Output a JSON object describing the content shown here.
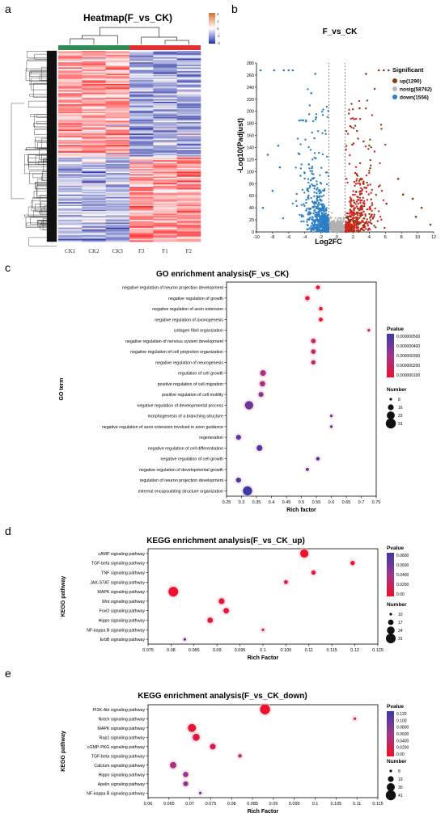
{
  "panels": {
    "a": {
      "letter": "a",
      "title": "Heatmap(F_vs_CK)",
      "samples": [
        "CK1",
        "CK2",
        "CK3",
        "F3",
        "F1",
        "F2"
      ],
      "group_colors": {
        "CK": "#2e8b57",
        "F": "#e03030"
      },
      "legend_ticks": [
        "2",
        "1",
        "0",
        "-1",
        "-2"
      ]
    },
    "b": {
      "letter": "b",
      "title": "F_vs_CK",
      "xlabel": "Log2FC",
      "ylabel": "-Log10(Padjust)",
      "legend_title": "Significant",
      "legend": [
        {
          "label": "up(1290)",
          "color": "#8b3a0e"
        },
        {
          "label": "nosig(58762)",
          "color": "#b8b8b8"
        },
        {
          "label": "down(1556)",
          "color": "#2a7fc4"
        }
      ],
      "xticks": [
        "-10",
        "-8",
        "-6",
        "-4",
        "-2",
        "0",
        "2",
        "4",
        "6",
        "8",
        "10",
        "12"
      ],
      "yticks": [
        "0",
        "20",
        "40",
        "60",
        "80",
        "100",
        "120",
        "140",
        "160",
        "180",
        "200",
        "220",
        "240",
        "260",
        "280"
      ]
    },
    "c": {
      "letter": "c"
    },
    "d": {
      "letter": "d"
    },
    "e": {
      "letter": "e"
    }
  },
  "chart_data": [
    {
      "type": "heatmap",
      "title": "Heatmap(F_vs_CK)",
      "columns": [
        "CK1",
        "CK2",
        "CK3",
        "F3",
        "F1",
        "F2"
      ],
      "color_scale": {
        "min": -2,
        "max": 2,
        "low": "#2233aa",
        "mid": "#ffffff",
        "high": "#e02020"
      },
      "pattern": "upper block high in CK / low in F; lower block low in CK / high in F"
    },
    {
      "type": "scatter",
      "title": "F_vs_CK",
      "xlabel": "Log2FC",
      "ylabel": "-Log10(Padjust)",
      "xlim": [
        -10,
        12
      ],
      "ylim": [
        0,
        280
      ],
      "thresholds": {
        "x": [
          -1,
          1
        ]
      },
      "series": [
        {
          "name": "up(1290)",
          "count": 1290
        },
        {
          "name": "nosig(58762)",
          "count": 58762
        },
        {
          "name": "down(1556)",
          "count": 1556
        }
      ]
    },
    {
      "type": "scatter",
      "title": "GO enrichment analysis(F_vs_CK)",
      "xlabel": "Rich factor",
      "ylabel": "GO term",
      "xlim": [
        0.25,
        0.75
      ],
      "xticks": [
        "0.25",
        "0.3",
        "0.35",
        "0.4",
        "0.45",
        "0.5",
        "0.55",
        "0.6",
        "0.65",
        "0.7",
        "0.75"
      ],
      "color_legend": {
        "title": "Pvalue",
        "ticks": [
          "0.000000500",
          "0.000000400",
          "0.000000300",
          "0.000000200",
          "0.000000100"
        ],
        "min": 1e-07,
        "max": 5e-07
      },
      "size_legend": {
        "title": "Number",
        "ticks": [
          8,
          16,
          23,
          31
        ]
      },
      "terms": [
        {
          "term": "negative regulation of neuron projection development",
          "rich": 0.555,
          "p": 1e-07,
          "n": 11
        },
        {
          "term": "negative regulation of growth",
          "rich": 0.52,
          "p": 1.2e-07,
          "n": 12
        },
        {
          "term": "negative regulation of axon extension",
          "rich": 0.565,
          "p": 1e-07,
          "n": 10
        },
        {
          "term": "negative regulation of axonogenesis",
          "rich": 0.565,
          "p": 1e-07,
          "n": 11
        },
        {
          "term": "collagen fibril organization",
          "rich": 0.725,
          "p": 1.5e-07,
          "n": 8
        },
        {
          "term": "negative regulation of nervous system development",
          "rich": 0.54,
          "p": 2e-07,
          "n": 13
        },
        {
          "term": "negative regulation of cell projection organization",
          "rich": 0.54,
          "p": 2.2e-07,
          "n": 13
        },
        {
          "term": "negative regulation of neurogenesis",
          "rich": 0.54,
          "p": 2.2e-07,
          "n": 12
        },
        {
          "term": "regulation of cell growth",
          "rich": 0.372,
          "p": 2.8e-07,
          "n": 16
        },
        {
          "term": "positive regulation of cell migration",
          "rich": 0.37,
          "p": 2.8e-07,
          "n": 15
        },
        {
          "term": "positive regulation of cell motility",
          "rich": 0.365,
          "p": 3.5e-07,
          "n": 14
        },
        {
          "term": "negative regulation of developmental process",
          "rich": 0.325,
          "p": 4e-07,
          "n": 25
        },
        {
          "term": "morphogenesis of a branching structure",
          "rich": 0.6,
          "p": 4.2e-07,
          "n": 8
        },
        {
          "term": "negative regulation of axon extension involved in axon guidance",
          "rich": 0.6,
          "p": 4.6e-07,
          "n": 8
        },
        {
          "term": "regeneration",
          "rich": 0.29,
          "p": 4.5e-07,
          "n": 14
        },
        {
          "term": "negative regulation of cell differentiation",
          "rich": 0.36,
          "p": 4.6e-07,
          "n": 16
        },
        {
          "term": "negative regulation of cell growth",
          "rich": 0.555,
          "p": 4.8e-07,
          "n": 10
        },
        {
          "term": "negative regulation of developmental growth",
          "rich": 0.52,
          "p": 4.8e-07,
          "n": 9
        },
        {
          "term": "regulation of neuron projection development",
          "rich": 0.29,
          "p": 4.8e-07,
          "n": 14
        },
        {
          "term": "external encapsulating structure organization",
          "rich": 0.32,
          "p": 5e-07,
          "n": 28
        }
      ]
    },
    {
      "type": "scatter",
      "title": "KEGG enrichment analysis(F_vs_CK_up)",
      "xlabel": "Rich Factor",
      "ylabel": "KEGG pathway",
      "xlim": [
        0.075,
        0.125
      ],
      "xticks": [
        "0.075",
        "0.08",
        "0.085",
        "0.09",
        "0.095",
        "0.1",
        "0.105",
        "0.11",
        "0.115",
        "0.12",
        "0.125"
      ],
      "color_legend": {
        "title": "Pvalue",
        "ticks": [
          "0.0800",
          "0.0600",
          "0.0400",
          "0.0200",
          "0.00"
        ],
        "min": 0,
        "max": 0.08
      },
      "size_legend": {
        "title": "Number",
        "ticks": [
          10,
          17,
          24,
          31
        ]
      },
      "terms": [
        {
          "term": "cAMP signaling pathway",
          "rich": 0.109,
          "p": 0.001,
          "n": 26
        },
        {
          "term": "TGF-beta signaling pathway",
          "rich": 0.1195,
          "p": 0.003,
          "n": 14
        },
        {
          "term": "TNF signaling pathway",
          "rich": 0.111,
          "p": 0.004,
          "n": 14
        },
        {
          "term": "JAK-STAT signaling pathway",
          "rich": 0.105,
          "p": 0.008,
          "n": 13
        },
        {
          "term": "MAPK signaling pathway",
          "rich": 0.0805,
          "p": 0.002,
          "n": 31
        },
        {
          "term": "Wnt signaling pathway",
          "rich": 0.091,
          "p": 0.003,
          "n": 18
        },
        {
          "term": "FoxO signaling pathway",
          "rich": 0.092,
          "p": 0.006,
          "n": 17
        },
        {
          "term": "Hippo signaling pathway",
          "rich": 0.0885,
          "p": 0.006,
          "n": 17
        },
        {
          "term": "NF-kappa B signaling pathway",
          "rich": 0.1,
          "p": 0.009,
          "n": 10
        },
        {
          "term": "ErbB signaling pathway",
          "rich": 0.083,
          "p": 0.08,
          "n": 10
        }
      ]
    },
    {
      "type": "scatter",
      "title": "KEGG enrichment analysis(F_vs_CK_down)",
      "xlabel": "Rich Factor",
      "ylabel": "KEGG pathway",
      "xlim": [
        0.06,
        0.115
      ],
      "xticks": [
        "0.06",
        "0.065",
        "0.07",
        "0.075",
        "0.08",
        "0.085",
        "0.09",
        "0.095",
        "0.1",
        "0.105",
        "0.11",
        "0.115"
      ],
      "color_legend": {
        "title": "Pvalue",
        "ticks": [
          "0.120",
          "0.100",
          "0.0800",
          "0.0600",
          "0.0400",
          "0.0200",
          "0.00"
        ],
        "min": 0,
        "max": 0.13
      },
      "size_legend": {
        "title": "Number",
        "ticks": [
          8,
          19,
          30,
          41
        ]
      },
      "terms": [
        {
          "term": "PI3K-Akt signaling pathway",
          "rich": 0.088,
          "p": 0.002,
          "n": 41
        },
        {
          "term": "Notch signaling pathway",
          "rich": 0.1095,
          "p": 0.01,
          "n": 8
        },
        {
          "term": "MAPK signaling pathway",
          "rich": 0.0705,
          "p": 0.005,
          "n": 30
        },
        {
          "term": "Rap1 signaling pathway",
          "rich": 0.0715,
          "p": 0.012,
          "n": 25
        },
        {
          "term": "cGMP-PKG signaling pathway",
          "rich": 0.0755,
          "p": 0.03,
          "n": 19
        },
        {
          "term": "TGF-beta signaling pathway",
          "rich": 0.082,
          "p": 0.04,
          "n": 11
        },
        {
          "term": "Calcium signaling pathway",
          "rich": 0.066,
          "p": 0.06,
          "n": 22
        },
        {
          "term": "Hippo signaling pathway",
          "rich": 0.069,
          "p": 0.07,
          "n": 17
        },
        {
          "term": "Apelin signaling pathway",
          "rich": 0.069,
          "p": 0.08,
          "n": 16
        },
        {
          "term": "NF-kappa B signaling pathway",
          "rich": 0.0725,
          "p": 0.12,
          "n": 8
        }
      ]
    }
  ]
}
